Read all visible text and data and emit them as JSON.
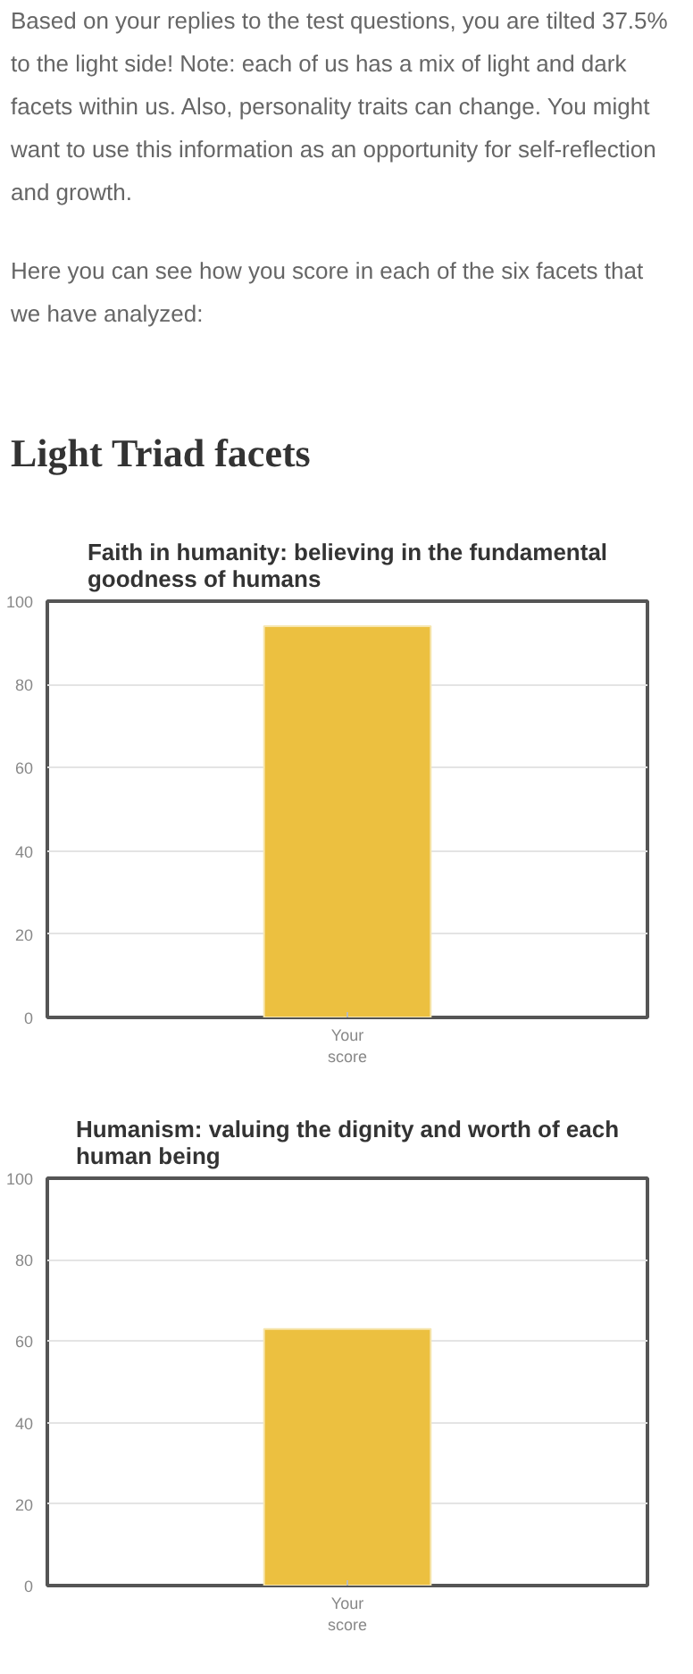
{
  "chart_data": [
    {
      "type": "bar",
      "title": "Faith in humanity: believing in the fundamental goodness of humans",
      "annotations": [
        "Based on your replies to the test questions, you are tilted 37.5% to the light side! Note: each of us has a mix of light and dark facets within us. Also, personality traits can change. You might want to use this information as an opportunity for self-reflection and growth.",
        "Here you can see how you score in each of the six facets that we have analyzed:",
        "Light Triad facets"
      ],
      "categories": [
        "Your score"
      ],
      "values": [
        94
      ],
      "color": "#ecc040",
      "ylim": [
        0,
        100
      ],
      "yticks": [
        0,
        20,
        40,
        60,
        80,
        100
      ],
      "grid": "y"
    },
    {
      "type": "bar",
      "title": "Humanism: valuing the dignity and worth of each human being",
      "categories": [
        "Your score"
      ],
      "values": [
        63
      ],
      "color": "#ecc040",
      "ylim": [
        0,
        100
      ],
      "yticks": [
        0,
        20,
        40,
        60,
        80,
        100
      ],
      "grid": "y"
    }
  ]
}
